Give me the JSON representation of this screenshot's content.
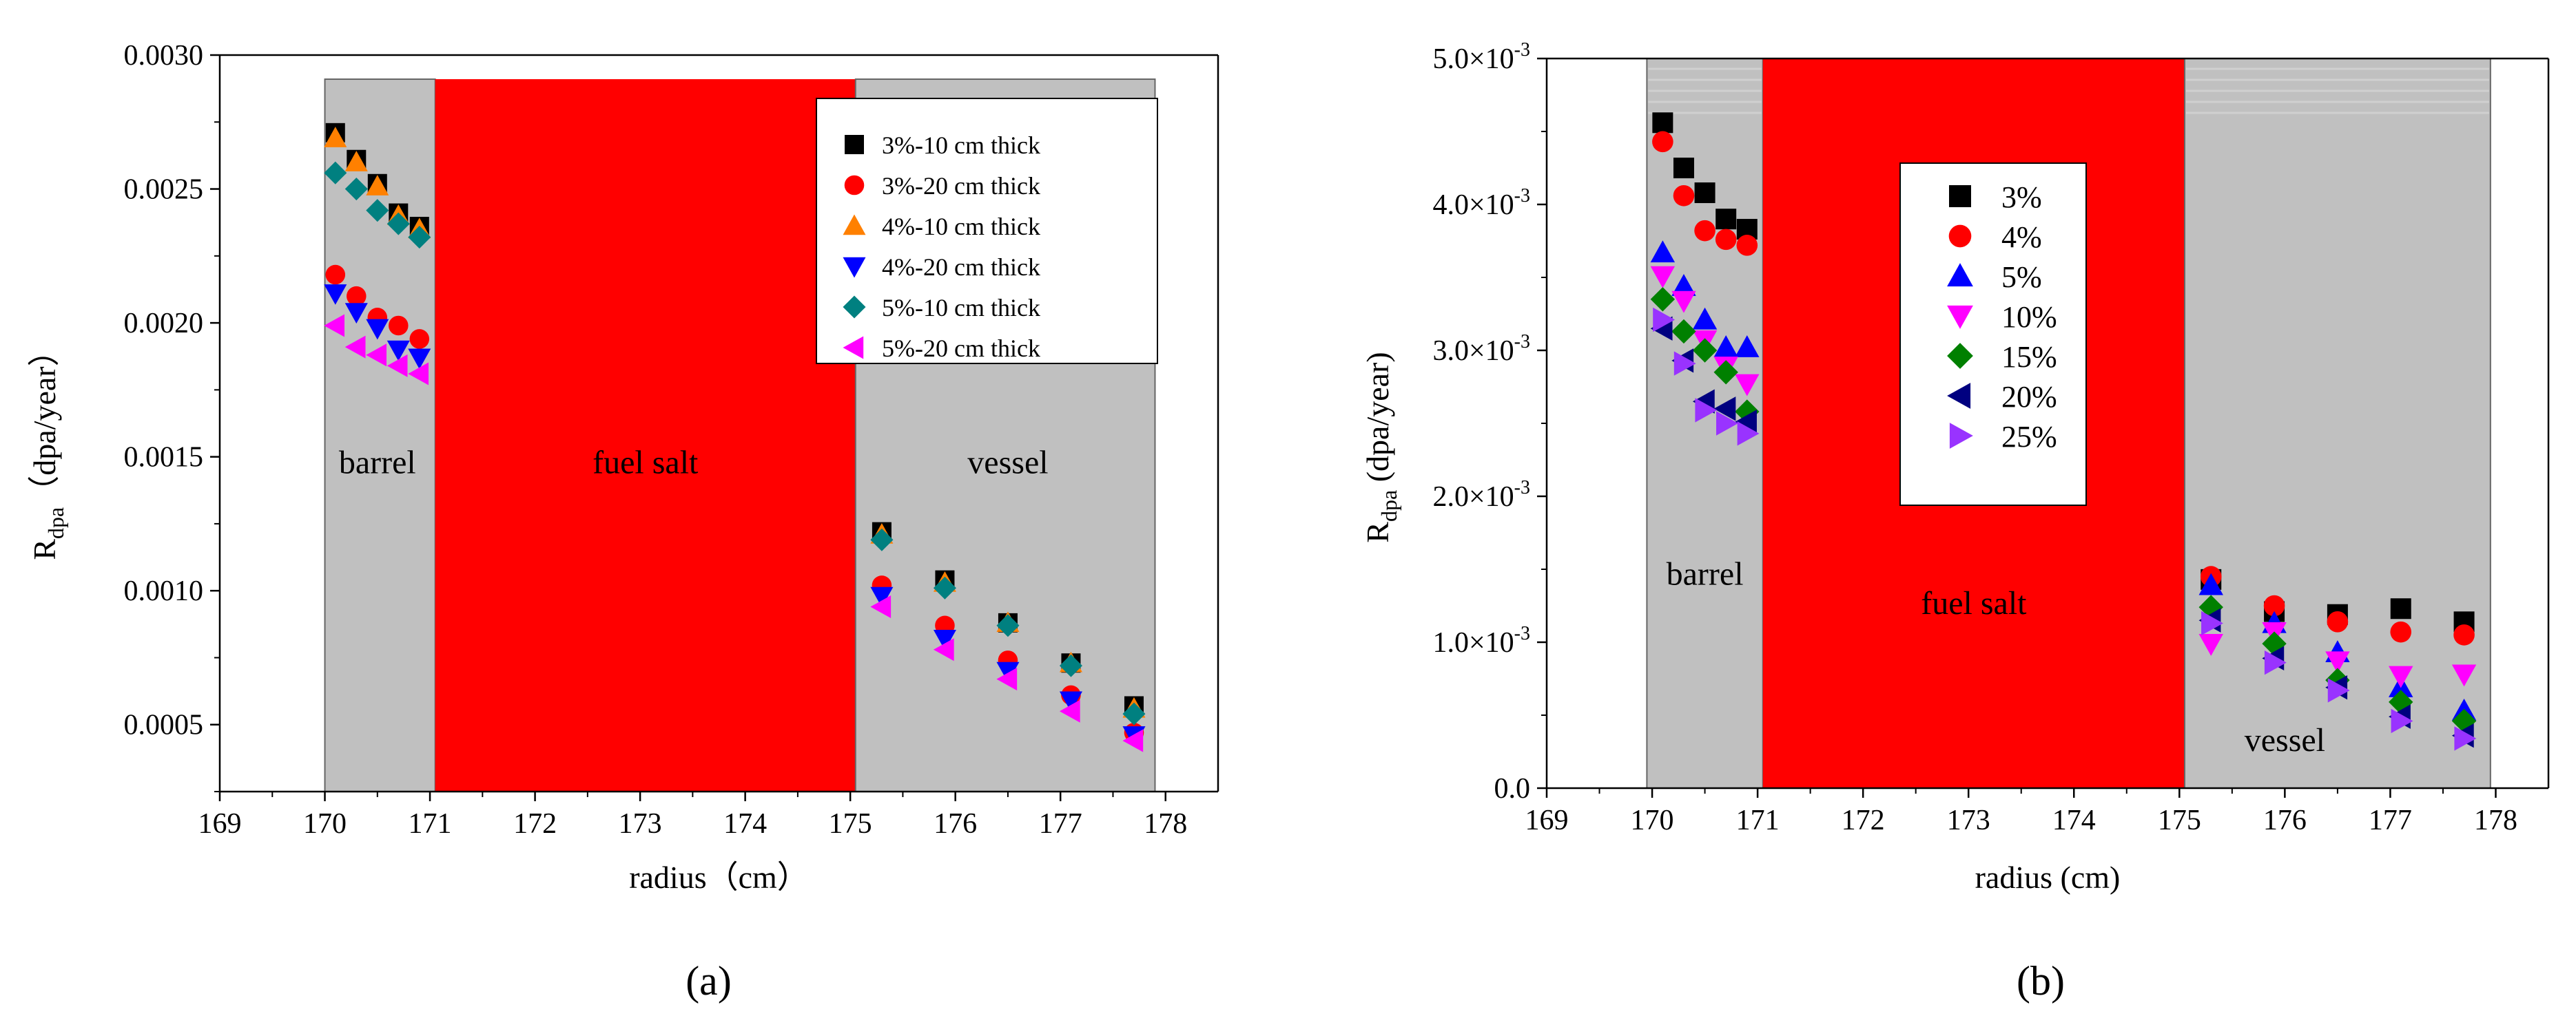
{
  "chart_data": [
    {
      "type": "scatter",
      "panel_label": "(a)",
      "xlabel": "radius（cm）",
      "ylabel_main": "R",
      "ylabel_sub": "dpa",
      "ylabel_rest": "（dpa/year）",
      "xlim": [
        169,
        178.5
      ],
      "ylim": [
        0.00025,
        0.003
      ],
      "xticks": [
        169,
        170,
        171,
        172,
        173,
        174,
        175,
        176,
        177,
        178
      ],
      "xtick_labels": [
        "169",
        "170",
        "171",
        "172",
        "173",
        "174",
        "175",
        "176",
        "177",
        "178"
      ],
      "yticks": [
        0.0005,
        0.001,
        0.0015,
        0.002,
        0.0025,
        0.003
      ],
      "ytick_labels": [
        "0.0005",
        "0.0010",
        "0.0015",
        "0.0020",
        "0.0025",
        "0.0030"
      ],
      "regions": [
        {
          "name": "barrel",
          "label": "barrel",
          "x0": 170.0,
          "x1": 171.05,
          "y_top": 0.00291,
          "color": "#c0c0c0",
          "label_x": 170.5,
          "label_y": 0.00148
        },
        {
          "name": "fuel-salt",
          "label": "fuel salt",
          "x0": 171.05,
          "x1": 175.05,
          "y_top": 0.00291,
          "color": "#ff0000",
          "label_x": 173.05,
          "label_y": 0.00148
        },
        {
          "name": "vessel",
          "label": "vessel",
          "x0": 175.05,
          "x1": 177.9,
          "y_top": 0.00291,
          "color": "#c0c0c0",
          "label_x": 176.5,
          "label_y": 0.00148
        }
      ],
      "legend_position": "top-right",
      "series": [
        {
          "name": "3%-10 cm thick",
          "marker": "square",
          "color": "#000000",
          "x": [
            170.1,
            170.3,
            170.5,
            170.7,
            170.9,
            175.3,
            175.9,
            176.5,
            177.1,
            177.7
          ],
          "y": [
            0.00271,
            0.00261,
            0.00252,
            0.00241,
            0.00236,
            0.00122,
            0.00104,
            0.00088,
            0.00073,
            0.00057
          ]
        },
        {
          "name": "3%-20 cm thick",
          "marker": "circle",
          "color": "#ff0000",
          "x": [
            170.1,
            170.3,
            170.5,
            170.7,
            170.9,
            175.3,
            175.9,
            176.5,
            177.1,
            177.7
          ],
          "y": [
            0.00218,
            0.0021,
            0.00202,
            0.00199,
            0.00194,
            0.00102,
            0.00087,
            0.00074,
            0.00061,
            0.00047
          ]
        },
        {
          "name": "4%-10 cm thick",
          "marker": "triangle-up",
          "color": "#ff8000",
          "x": [
            170.1,
            170.3,
            170.5,
            170.7,
            170.9,
            175.3,
            175.9,
            176.5,
            177.1,
            177.7
          ],
          "y": [
            0.00269,
            0.0026,
            0.00251,
            0.0024,
            0.00235,
            0.00121,
            0.00103,
            0.00088,
            0.00073,
            0.00056
          ]
        },
        {
          "name": "4%-20 cm thick",
          "marker": "triangle-down",
          "color": "#0000ff",
          "x": [
            170.1,
            170.3,
            170.5,
            170.7,
            170.9,
            175.3,
            175.9,
            176.5,
            177.1,
            177.7
          ],
          "y": [
            0.00211,
            0.00204,
            0.00198,
            0.0019,
            0.00187,
            0.00098,
            0.00082,
            0.0007,
            0.00059,
            0.00046
          ]
        },
        {
          "name": "5%-10 cm thick",
          "marker": "diamond",
          "color": "#008080",
          "x": [
            170.1,
            170.3,
            170.5,
            170.7,
            170.9,
            175.3,
            175.9,
            176.5,
            177.1,
            177.7
          ],
          "y": [
            0.00256,
            0.0025,
            0.00242,
            0.00237,
            0.00232,
            0.00119,
            0.00101,
            0.00087,
            0.00072,
            0.00054
          ]
        },
        {
          "name": "5%-20 cm thick",
          "marker": "triangle-left",
          "color": "#ff00ff",
          "x": [
            170.1,
            170.3,
            170.5,
            170.7,
            170.9,
            175.3,
            175.9,
            176.5,
            177.1,
            177.7
          ],
          "y": [
            0.00199,
            0.00191,
            0.00188,
            0.00184,
            0.00181,
            0.00094,
            0.00078,
            0.00067,
            0.00055,
            0.00044
          ]
        }
      ]
    },
    {
      "type": "scatter",
      "panel_label": "(b)",
      "xlabel": "radius (cm)",
      "ylabel_main": "R",
      "ylabel_sub": "dpa",
      "ylabel_rest": " (dpa/year)",
      "xlim": [
        169,
        178.5
      ],
      "ylim": [
        0,
        0.005
      ],
      "xticks": [
        169,
        170,
        171,
        172,
        173,
        174,
        175,
        176,
        177,
        178
      ],
      "xtick_labels": [
        "169",
        "170",
        "171",
        "172",
        "173",
        "174",
        "175",
        "176",
        "177",
        "178"
      ],
      "yticks": [
        0,
        0.001,
        0.002,
        0.003,
        0.004,
        0.005
      ],
      "ytick_labels": [
        "0.0",
        "1.0×10",
        "2.0×10",
        "3.0×10",
        "4.0×10",
        "5.0×10"
      ],
      "ytick_exponent": "-3",
      "regions": [
        {
          "name": "barrel",
          "label": "barrel",
          "x0": 169.95,
          "x1": 171.05,
          "y_top": 0.005,
          "color": "#c0c0c0",
          "label_x": 170.5,
          "label_y": 0.00147
        },
        {
          "name": "fuel-salt",
          "label": "fuel salt",
          "x0": 171.05,
          "x1": 175.05,
          "y_top": 0.005,
          "color": "#ff0000",
          "label_x": 173.05,
          "label_y": 0.00127
        },
        {
          "name": "vessel",
          "label": "vessel",
          "x0": 175.05,
          "x1": 177.95,
          "y_top": 0.005,
          "color": "#c0c0c0",
          "label_x": 176.0,
          "label_y": 0.00033
        }
      ],
      "legend_position": "center",
      "series": [
        {
          "name": "3%",
          "marker": "square",
          "color": "#000000",
          "x": [
            170.1,
            170.3,
            170.5,
            170.7,
            170.9,
            175.3,
            175.9,
            176.5,
            177.1,
            177.7
          ],
          "y": [
            0.00456,
            0.00425,
            0.00408,
            0.0039,
            0.00383,
            0.00143,
            0.00121,
            0.00119,
            0.00123,
            0.00114
          ]
        },
        {
          "name": "4%",
          "marker": "circle",
          "color": "#ff0000",
          "x": [
            170.1,
            170.3,
            170.5,
            170.7,
            170.9,
            175.3,
            175.9,
            176.5,
            177.1,
            177.7
          ],
          "y": [
            0.00443,
            0.00406,
            0.00382,
            0.00376,
            0.00372,
            0.00145,
            0.00125,
            0.00114,
            0.00107,
            0.00105
          ]
        },
        {
          "name": "5%",
          "marker": "triangle-up",
          "color": "#0000ff",
          "x": [
            170.1,
            170.3,
            170.5,
            170.7,
            170.9,
            175.3,
            175.9,
            176.5,
            177.1,
            177.7
          ],
          "y": [
            0.00367,
            0.00344,
            0.00321,
            0.00302,
            0.00302,
            0.00139,
            0.00113,
            0.00093,
            0.00069,
            0.00053
          ]
        },
        {
          "name": "10%",
          "marker": "triangle-down",
          "color": "#ff00ff",
          "x": [
            170.1,
            170.3,
            170.5,
            170.7,
            170.9,
            175.3,
            175.9,
            176.5,
            177.1,
            177.7
          ],
          "y": [
            0.00351,
            0.00334,
            0.00307,
            0.00289,
            0.00277,
            0.00099,
            0.00107,
            0.00087,
            0.00077,
            0.00078
          ]
        },
        {
          "name": "15%",
          "marker": "diamond",
          "color": "#008000",
          "x": [
            170.1,
            170.3,
            170.5,
            170.7,
            170.9,
            175.3,
            175.9,
            176.5,
            177.1,
            177.7
          ],
          "y": [
            0.00335,
            0.00313,
            0.003,
            0.00285,
            0.00258,
            0.00124,
            0.00099,
            0.00074,
            0.00059,
            0.00046
          ]
        },
        {
          "name": "20%",
          "marker": "triangle-left",
          "color": "#000080",
          "x": [
            170.1,
            170.3,
            170.5,
            170.7,
            170.9,
            175.3,
            175.9,
            176.5,
            177.1,
            177.7
          ],
          "y": [
            0.00315,
            0.00293,
            0.00265,
            0.0026,
            0.00251,
            0.00115,
            0.00089,
            0.00069,
            0.00049,
            0.00036
          ]
        },
        {
          "name": "25%",
          "marker": "triangle-right",
          "color": "#9933ff",
          "x": [
            170.1,
            170.3,
            170.5,
            170.7,
            170.9,
            175.3,
            175.9,
            176.5,
            177.1,
            177.7
          ],
          "y": [
            0.00321,
            0.00291,
            0.00259,
            0.0025,
            0.00243,
            0.00113,
            0.00086,
            0.00067,
            0.00046,
            0.00034
          ]
        }
      ]
    }
  ]
}
